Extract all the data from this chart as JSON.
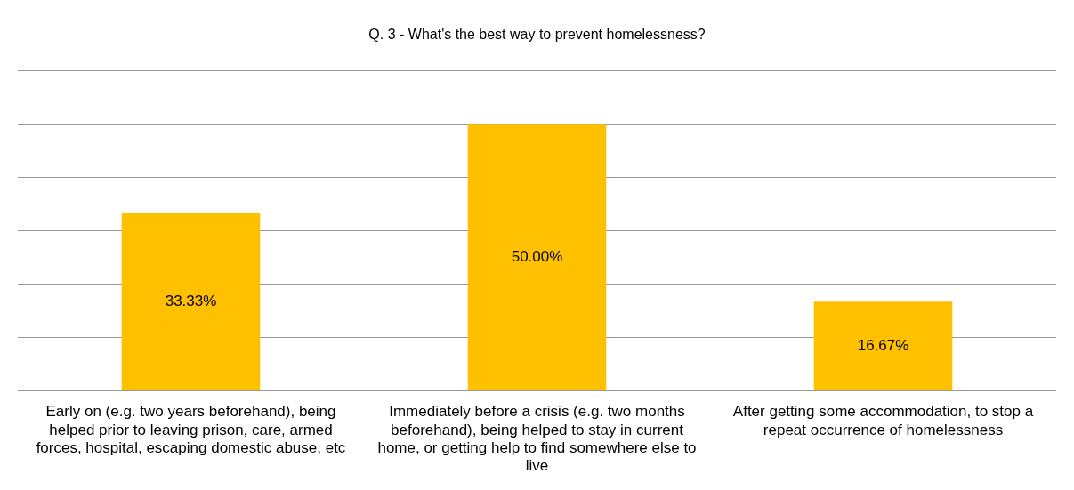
{
  "chart_data": {
    "type": "bar",
    "title": "Q. 3 - What's the best way to prevent homelessness?",
    "categories": [
      "Early on (e.g. two years beforehand), being helped prior to leaving prison, care, armed forces, hospital, escaping domestic abuse, etc",
      "Immediately before a crisis (e.g. two months beforehand), being helped to stay in current home, or getting help to find somewhere else to live",
      "After getting some accommodation, to stop a repeat occurrence of homelessness"
    ],
    "values": [
      33.33,
      50,
      16.67
    ],
    "value_labels": [
      "33.33%",
      "50.00%",
      "16.67%"
    ],
    "color": "#ffc000",
    "ylim": [
      0,
      60
    ],
    "yticks": [
      {
        "value": 0,
        "label": null
      },
      {
        "value": 10,
        "label": null
      },
      {
        "value": 20,
        "label": null
      },
      {
        "value": 30,
        "label": null
      },
      {
        "value": 40,
        "label": null
      },
      {
        "value": 50,
        "label": null
      },
      {
        "value": 60,
        "label": null
      }
    ],
    "grid": "y",
    "tick_labels": "x"
  }
}
